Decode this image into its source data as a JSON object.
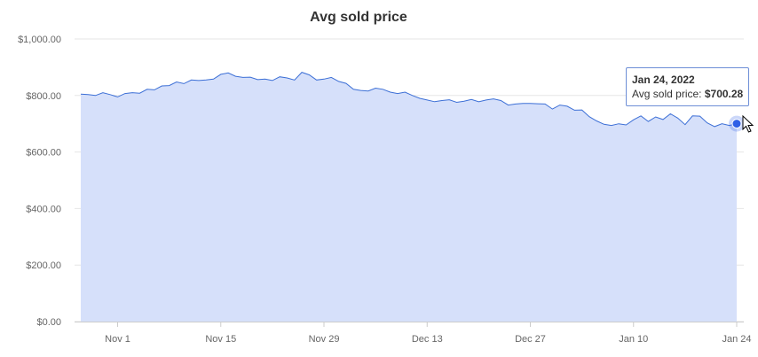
{
  "chart_data": {
    "type": "area",
    "title": "Avg sold price",
    "xlabel": "",
    "ylabel": "",
    "ylim": [
      0,
      1000
    ],
    "grid": true,
    "legend": "none",
    "yticks": [
      "$0.00",
      "$200.00",
      "$400.00",
      "$600.00",
      "$800.00",
      "$1,000.00"
    ],
    "ytick_values": [
      0,
      200,
      400,
      600,
      800,
      1000
    ],
    "xticks": [
      "Nov 1",
      "Nov 15",
      "Nov 29",
      "Dec 13",
      "Dec 27",
      "Jan 10",
      "Jan 24"
    ],
    "xtick_dates": [
      "2021-11-01",
      "2021-11-15",
      "2021-11-29",
      "2021-12-13",
      "2021-12-27",
      "2022-01-10",
      "2022-01-24"
    ],
    "series": [
      {
        "x": [
          "2021-10-27",
          "2021-10-28",
          "2021-10-29",
          "2021-10-30",
          "2021-10-31",
          "2021-11-01",
          "2021-11-02",
          "2021-11-03",
          "2021-11-04",
          "2021-11-05",
          "2021-11-06",
          "2021-11-07",
          "2021-11-08",
          "2021-11-09",
          "2021-11-10",
          "2021-11-11",
          "2021-11-12",
          "2021-11-13",
          "2021-11-14",
          "2021-11-15",
          "2021-11-16",
          "2021-11-17",
          "2021-11-18",
          "2021-11-19",
          "2021-11-20",
          "2021-11-21",
          "2021-11-22",
          "2021-11-23",
          "2021-11-24",
          "2021-11-25",
          "2021-11-26",
          "2021-11-27",
          "2021-11-28",
          "2021-11-29",
          "2021-11-30",
          "2021-12-01",
          "2021-12-02",
          "2021-12-03",
          "2021-12-04",
          "2021-12-05",
          "2021-12-06",
          "2021-12-07",
          "2021-12-08",
          "2021-12-09",
          "2021-12-10",
          "2021-12-11",
          "2021-12-12",
          "2021-12-13",
          "2021-12-14",
          "2021-12-15",
          "2021-12-16",
          "2021-12-17",
          "2021-12-18",
          "2021-12-19",
          "2021-12-20",
          "2021-12-21",
          "2021-12-22",
          "2021-12-23",
          "2021-12-24",
          "2021-12-25",
          "2021-12-26",
          "2021-12-27",
          "2021-12-28",
          "2021-12-29",
          "2021-12-30",
          "2021-12-31",
          "2022-01-01",
          "2022-01-02",
          "2022-01-03",
          "2022-01-04",
          "2022-01-05",
          "2022-01-06",
          "2022-01-07",
          "2022-01-08",
          "2022-01-09",
          "2022-01-10",
          "2022-01-11",
          "2022-01-12",
          "2022-01-13",
          "2022-01-14",
          "2022-01-15",
          "2022-01-16",
          "2022-01-17",
          "2022-01-18",
          "2022-01-19",
          "2022-01-20",
          "2022-01-21",
          "2022-01-22",
          "2022-01-23",
          "2022-01-24"
        ],
        "values": [
          805,
          803,
          800,
          810,
          803,
          795,
          807,
          810,
          808,
          822,
          820,
          834,
          835,
          848,
          842,
          855,
          853,
          855,
          858,
          875,
          880,
          868,
          864,
          865,
          856,
          858,
          853,
          866,
          862,
          855,
          882,
          873,
          855,
          858,
          864,
          850,
          843,
          822,
          818,
          816,
          826,
          822,
          812,
          807,
          812,
          800,
          790,
          784,
          778,
          782,
          785,
          776,
          780,
          786,
          778,
          784,
          788,
          782,
          766,
          770,
          772,
          772,
          771,
          770,
          752,
          766,
          762,
          748,
          749,
          725,
          710,
          698,
          694,
          700,
          696,
          714,
          728,
          708,
          724,
          715,
          735,
          720,
          697,
          728,
          727,
          703,
          690,
          700,
          694,
          700.28
        ]
      }
    ],
    "colors": {
      "line": "#3c6fd6",
      "fill": "#d6e0fa",
      "marker": "#2f5fe6"
    },
    "tooltip": {
      "date": "Jan 24, 2022",
      "label": "Avg sold price:",
      "value": "$700.28"
    }
  }
}
